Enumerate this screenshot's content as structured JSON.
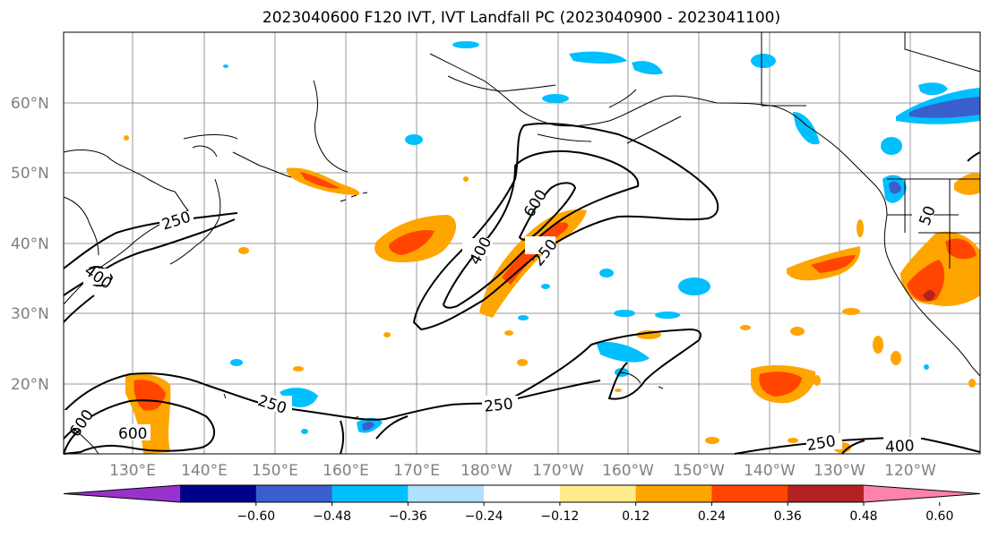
{
  "title": "2023040600 F120 IVT, IVT Landfall PC (2023040900 - 2023041100)",
  "lat_labels": [
    "60°N",
    "50°N",
    "40°N",
    "30°N",
    "20°N"
  ],
  "lon_labels": [
    "130°E",
    "140°E",
    "150°E",
    "160°E",
    "170°E",
    "180°W",
    "170°W",
    "160°W",
    "150°W",
    "140°W",
    "130°W",
    "120°W"
  ],
  "contour_labels": [
    "250",
    "400",
    "600",
    "400",
    "250",
    "600",
    "250",
    "600",
    "250",
    "400",
    "50"
  ],
  "colorbar": {
    "colors": [
      "#9932CC",
      "#00008B",
      "#3A5FCD",
      "#00BFFF",
      "#B0E2FF",
      "#FFFFFF",
      "#FFEC8B",
      "#FFA500",
      "#FF4500",
      "#B22222",
      "#FF82AB"
    ],
    "tick_labels": [
      "−0.60",
      "−0.48",
      "−0.36",
      "−0.24",
      "−0.12",
      "0.12",
      "0.24",
      "0.36",
      "0.48",
      "0.60"
    ]
  }
}
